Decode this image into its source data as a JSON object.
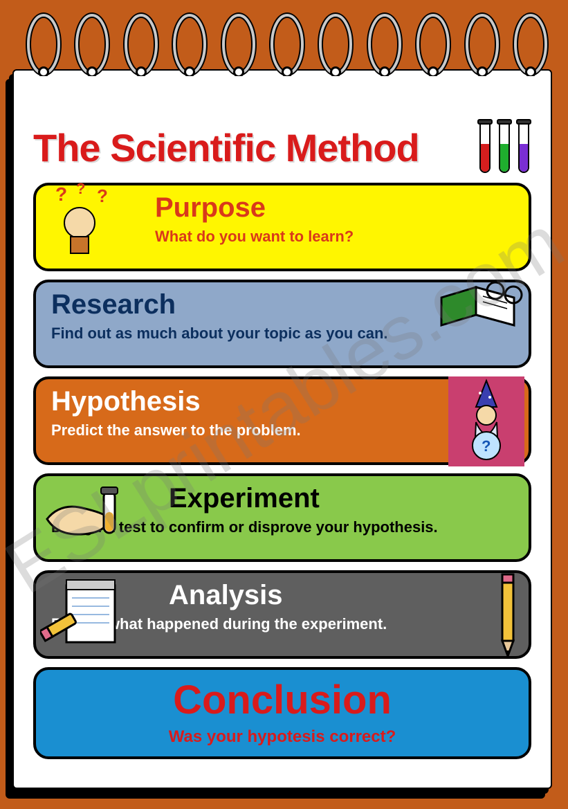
{
  "background_color": "#c25c1a",
  "page_color": "#ffffff",
  "title": "The Scientific Method",
  "title_color": "#d91b1b",
  "title_fontsize": 56,
  "watermark_text": "ESLprintables.com",
  "watermark_color": "rgba(120,120,120,0.26)",
  "test_tubes": [
    {
      "liquid_color": "#d41e1e"
    },
    {
      "liquid_color": "#1fae2e"
    },
    {
      "liquid_color": "#7a2ed4"
    }
  ],
  "steps": [
    {
      "id": "purpose",
      "title": "Purpose",
      "desc": "What do you want to learn?",
      "bg_color": "#fff600",
      "title_color": "#d9391a",
      "desc_color": "#d9391a",
      "title_align": "left",
      "title_indent": 150,
      "desc_indent": 150,
      "icon": "thinking-person"
    },
    {
      "id": "research",
      "title": "Research",
      "desc": "Find out as much about your topic as you can.",
      "bg_color": "#8fa8c9",
      "title_color": "#0c2f5e",
      "desc_color": "#0c2f5e",
      "title_align": "left",
      "title_indent": 0,
      "desc_indent": 0,
      "icon": "book-glasses"
    },
    {
      "id": "hypothesis",
      "title": "Hypothesis",
      "desc": "Predict the answer to the problem.",
      "bg_color": "#d76a1a",
      "title_color": "#ffffff",
      "desc_color": "#ffffff",
      "title_align": "left",
      "title_indent": 0,
      "desc_indent": 0,
      "icon": "wizard"
    },
    {
      "id": "experiment",
      "title": "Experiment",
      "desc": "Design a test to confirm or disprove your hypothesis.",
      "bg_color": "#89c94b",
      "title_color": "#000000",
      "desc_color": "#000000",
      "title_align": "left",
      "title_indent": 170,
      "desc_indent": 0,
      "icon": "hand-tube"
    },
    {
      "id": "analysis",
      "title": "Analysis",
      "desc": "Record what happened during the experiment.",
      "bg_color": "#5f5f5f",
      "title_color": "#ffffff",
      "desc_color": "#ffffff",
      "title_align": "left",
      "title_indent": 170,
      "desc_indent": 0,
      "icon": "notepad-pencil"
    },
    {
      "id": "conclusion",
      "title": "Conclusion",
      "desc": "Was your hypotesis correct?",
      "bg_color": "#1a8fd1",
      "title_color": "#d91b1b",
      "desc_color": "#d91b1b",
      "title_align": "center",
      "title_indent": 0,
      "desc_indent": 0,
      "icon": null
    }
  ]
}
